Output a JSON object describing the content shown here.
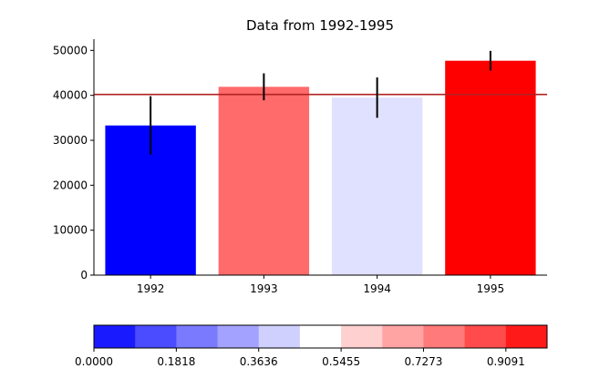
{
  "chart_data": {
    "type": "bar",
    "title": "Data from 1992-1995",
    "xlabel": "",
    "ylabel": "",
    "categories": [
      "1992",
      "1993",
      "1994",
      "1995"
    ],
    "values": [
      33300,
      41900,
      39500,
      47700
    ],
    "error": [
      6500,
      3000,
      4500,
      2200
    ],
    "bar_colors": [
      "#0000ff",
      "#ff6b6b",
      "#e0e0ff",
      "#ff0000"
    ],
    "ylim": [
      0,
      52500
    ],
    "yticks": [
      0,
      10000,
      20000,
      30000,
      40000,
      50000
    ],
    "ytick_labels": [
      "0",
      "10000",
      "20000",
      "30000",
      "40000",
      "50000"
    ],
    "reference_line": {
      "value": 40200,
      "color": "#b22222"
    },
    "colorbar": {
      "colors": [
        "#1a1aff",
        "#4b4bff",
        "#7a7aff",
        "#a3a3ff",
        "#d0d0ff",
        "#ffffff",
        "#ffd0d0",
        "#ffa3a3",
        "#ff7a7a",
        "#ff4b4b",
        "#ff1a1a"
      ],
      "ticks": [
        0.0,
        0.1818,
        0.3636,
        0.5455,
        0.7273,
        0.9091
      ],
      "tick_labels": [
        "0.0000",
        "0.1818",
        "0.3636",
        "0.5455",
        "0.7273",
        "0.9091"
      ],
      "range": [
        0,
        1
      ]
    },
    "grid": false
  }
}
